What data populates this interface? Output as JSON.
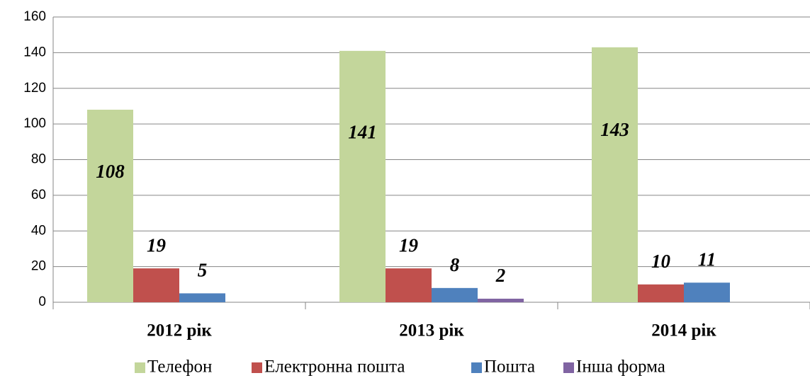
{
  "chart_data": {
    "type": "bar",
    "categories": [
      "2012 рік",
      "2013 рік",
      "2014 рік"
    ],
    "series": [
      {
        "name": "Телефон",
        "color": "#c3d69b",
        "values": [
          108,
          141,
          143
        ]
      },
      {
        "name": "Електронна пошта",
        "color": "#c0504d",
        "values": [
          19,
          19,
          10
        ]
      },
      {
        "name": "Пошта",
        "color": "#4f81bd",
        "values": [
          5,
          8,
          11
        ]
      },
      {
        "name": "Інша форма",
        "color": "#8064a2",
        "values": [
          null,
          2,
          null
        ]
      }
    ],
    "ylim": [
      0,
      160
    ],
    "yticks": [
      0,
      20,
      40,
      60,
      80,
      100,
      120,
      140,
      160
    ],
    "grid": true,
    "legend": "bottom"
  }
}
